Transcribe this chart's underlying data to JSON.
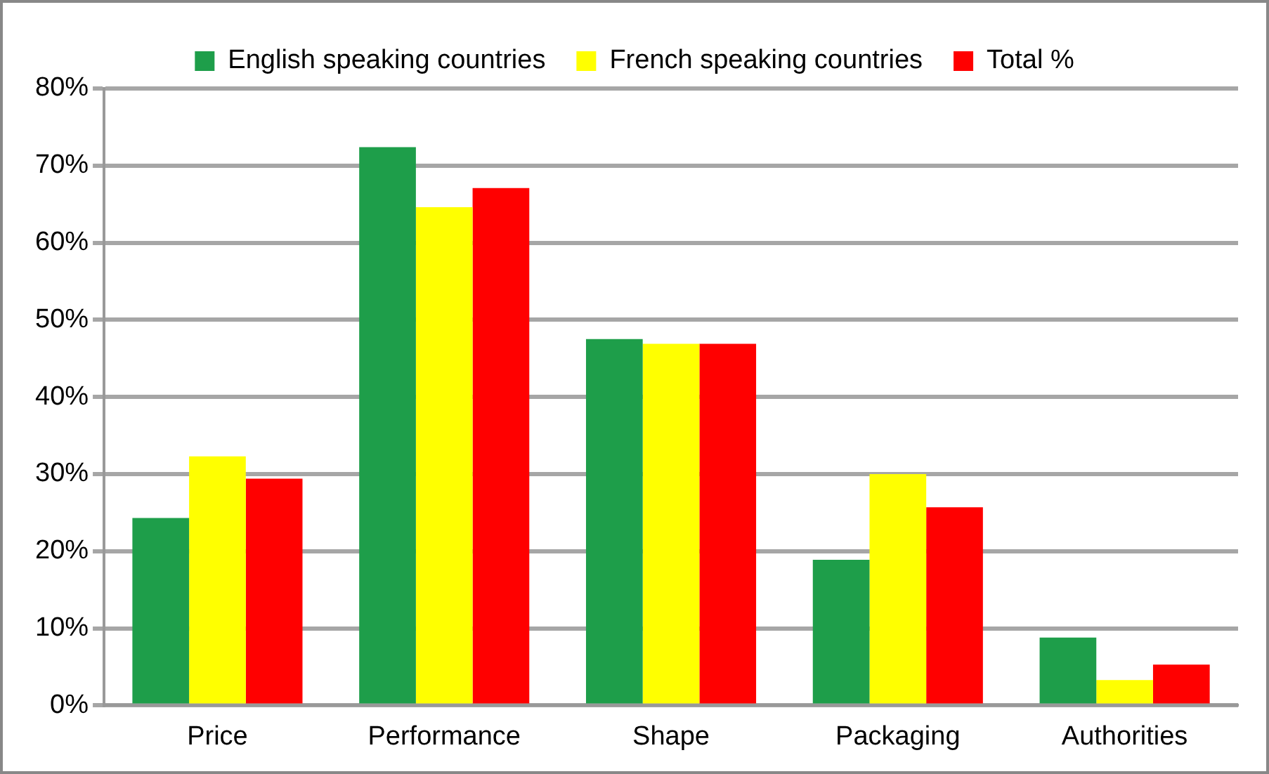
{
  "chart_data": {
    "type": "bar",
    "categories": [
      "Price",
      "Performance",
      "Shape",
      "Packaging",
      "Authorities"
    ],
    "series": [
      {
        "name": "English speaking countries",
        "color": "#1e9e4a",
        "values": [
          24.3,
          72.4,
          47.5,
          18.9,
          8.8
        ]
      },
      {
        "name": "French speaking countries",
        "color": "#ffff00",
        "values": [
          32.3,
          64.6,
          46.9,
          30.0,
          3.3
        ]
      },
      {
        "name": "Total %",
        "color": "#ff0000",
        "values": [
          29.4,
          67.1,
          46.9,
          25.7,
          5.3
        ]
      }
    ],
    "ylim": [
      0,
      80
    ],
    "yticks": [
      {
        "value": 0,
        "label": "0%"
      },
      {
        "value": 10,
        "label": "10%"
      },
      {
        "value": 20,
        "label": "20%"
      },
      {
        "value": 30,
        "label": "30%"
      },
      {
        "value": 40,
        "label": "40%"
      },
      {
        "value": 50,
        "label": "50%"
      },
      {
        "value": 60,
        "label": "60%"
      },
      {
        "value": 70,
        "label": "70%"
      },
      {
        "value": 80,
        "label": "80%"
      }
    ],
    "grid": "y",
    "legend": "top"
  }
}
